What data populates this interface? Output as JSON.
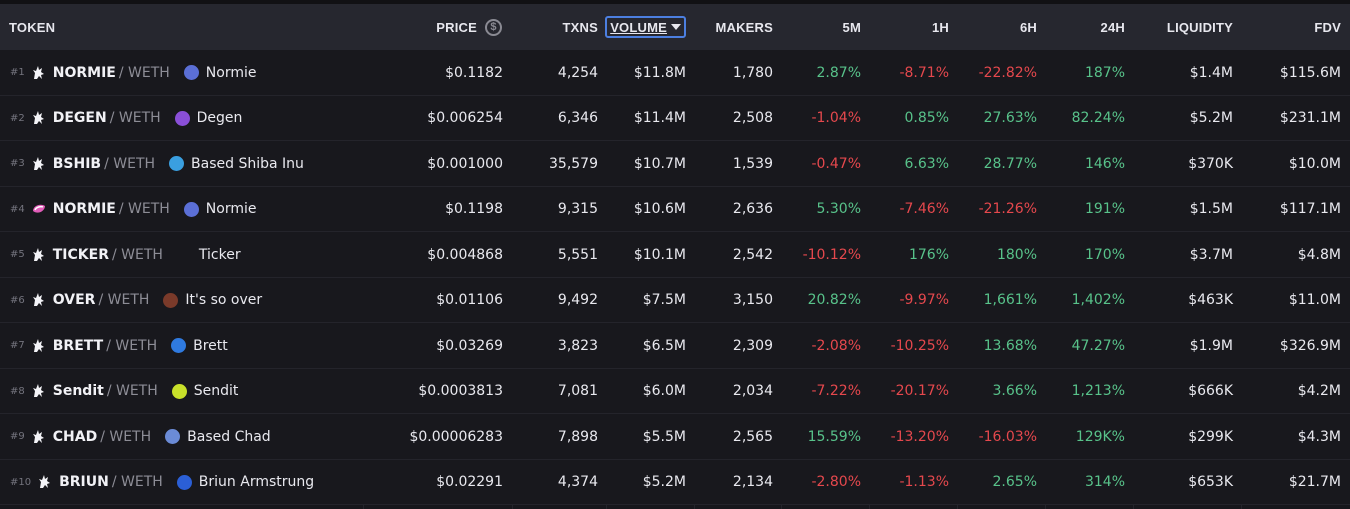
{
  "headers": {
    "token": "TOKEN",
    "price": "PRICE",
    "price_icon": "$",
    "txns": "TXNS",
    "volume": "VOLUME",
    "makers": "MAKERS",
    "m5": "5M",
    "h1": "1H",
    "h6": "6H",
    "h24": "24H",
    "liquidity": "LIQUIDITY",
    "fdv": "FDV"
  },
  "colors": {
    "positive": "#58c28a",
    "negative": "#e5484d",
    "sort_outline": "#4c7fe0"
  },
  "rows": [
    {
      "rank": "#1",
      "dex_icon": "unicorn-icon",
      "symbol": "NORMIE",
      "pair": "/ WETH",
      "name": "Normie",
      "logo": "normie-logo",
      "price": "$0.1182",
      "txns": "4,254",
      "volume": "$11.8M",
      "makers": "1,780",
      "m5": "2.87%",
      "h1": "-8.71%",
      "h6": "-22.82%",
      "h24": "187%",
      "liquidity": "$1.4M",
      "fdv": "$115.6M"
    },
    {
      "rank": "#2",
      "dex_icon": "unicorn-icon",
      "symbol": "DEGEN",
      "pair": "/ WETH",
      "name": "Degen",
      "logo": "degen-logo",
      "price": "$0.006254",
      "txns": "6,346",
      "volume": "$11.4M",
      "makers": "2,508",
      "m5": "-1.04%",
      "h1": "0.85%",
      "h6": "27.63%",
      "h24": "82.24%",
      "liquidity": "$5.2M",
      "fdv": "$231.1M"
    },
    {
      "rank": "#3",
      "dex_icon": "unicorn-icon",
      "symbol": "BSHIB",
      "pair": "/ WETH",
      "name": "Based Shiba Inu",
      "logo": "shiba-logo",
      "price": "$0.001000",
      "txns": "35,579",
      "volume": "$10.7M",
      "makers": "1,539",
      "m5": "-0.47%",
      "h1": "6.63%",
      "h6": "28.77%",
      "h24": "146%",
      "liquidity": "$370K",
      "fdv": "$10.0M"
    },
    {
      "rank": "#4",
      "dex_icon": "sushi-icon",
      "symbol": "NORMIE",
      "pair": "/ WETH",
      "name": "Normie",
      "logo": "normie-logo",
      "price": "$0.1198",
      "txns": "9,315",
      "volume": "$10.6M",
      "makers": "2,636",
      "m5": "5.30%",
      "h1": "-7.46%",
      "h6": "-21.26%",
      "h24": "191%",
      "liquidity": "$1.5M",
      "fdv": "$117.1M"
    },
    {
      "rank": "#5",
      "dex_icon": "unicorn-icon",
      "symbol": "TICKER",
      "pair": "/ WETH",
      "name": "Ticker",
      "logo": "",
      "price": "$0.004868",
      "txns": "5,551",
      "volume": "$10.1M",
      "makers": "2,542",
      "m5": "-10.12%",
      "h1": "176%",
      "h6": "180%",
      "h24": "170%",
      "liquidity": "$3.7M",
      "fdv": "$4.8M"
    },
    {
      "rank": "#6",
      "dex_icon": "unicorn-icon",
      "symbol": "OVER",
      "pair": "/ WETH",
      "name": "It's so over",
      "logo": "over-logo",
      "price": "$0.01106",
      "txns": "9,492",
      "volume": "$7.5M",
      "makers": "3,150",
      "m5": "20.82%",
      "h1": "-9.97%",
      "h6": "1,661%",
      "h24": "1,402%",
      "liquidity": "$463K",
      "fdv": "$11.0M"
    },
    {
      "rank": "#7",
      "dex_icon": "unicorn-icon",
      "symbol": "BRETT",
      "pair": "/ WETH",
      "name": "Brett",
      "logo": "brett-logo",
      "price": "$0.03269",
      "txns": "3,823",
      "volume": "$6.5M",
      "makers": "2,309",
      "m5": "-2.08%",
      "h1": "-10.25%",
      "h6": "13.68%",
      "h24": "47.27%",
      "liquidity": "$1.9M",
      "fdv": "$326.9M"
    },
    {
      "rank": "#8",
      "dex_icon": "unicorn-icon",
      "symbol": "Sendit",
      "pair": "/ WETH",
      "name": "Sendit",
      "logo": "sendit-logo",
      "price": "$0.0003813",
      "txns": "7,081",
      "volume": "$6.0M",
      "makers": "2,034",
      "m5": "-7.22%",
      "h1": "-20.17%",
      "h6": "3.66%",
      "h24": "1,213%",
      "liquidity": "$666K",
      "fdv": "$4.2M"
    },
    {
      "rank": "#9",
      "dex_icon": "unicorn-icon",
      "symbol": "CHAD",
      "pair": "/ WETH",
      "name": "Based Chad",
      "logo": "chad-logo",
      "price": "$0.00006283",
      "txns": "7,898",
      "volume": "$5.5M",
      "makers": "2,565",
      "m5": "15.59%",
      "h1": "-13.20%",
      "h6": "-16.03%",
      "h24": "129K%",
      "liquidity": "$299K",
      "fdv": "$4.3M"
    },
    {
      "rank": "#10",
      "dex_icon": "unicorn-icon",
      "symbol": "BRIUN",
      "pair": "/ WETH",
      "name": "Briun Armstrung",
      "logo": "briun-logo",
      "price": "$0.02291",
      "txns": "4,374",
      "volume": "$5.2M",
      "makers": "2,134",
      "m5": "-2.80%",
      "h1": "-1.13%",
      "h6": "2.65%",
      "h24": "314%",
      "liquidity": "$653K",
      "fdv": "$21.7M"
    }
  ]
}
